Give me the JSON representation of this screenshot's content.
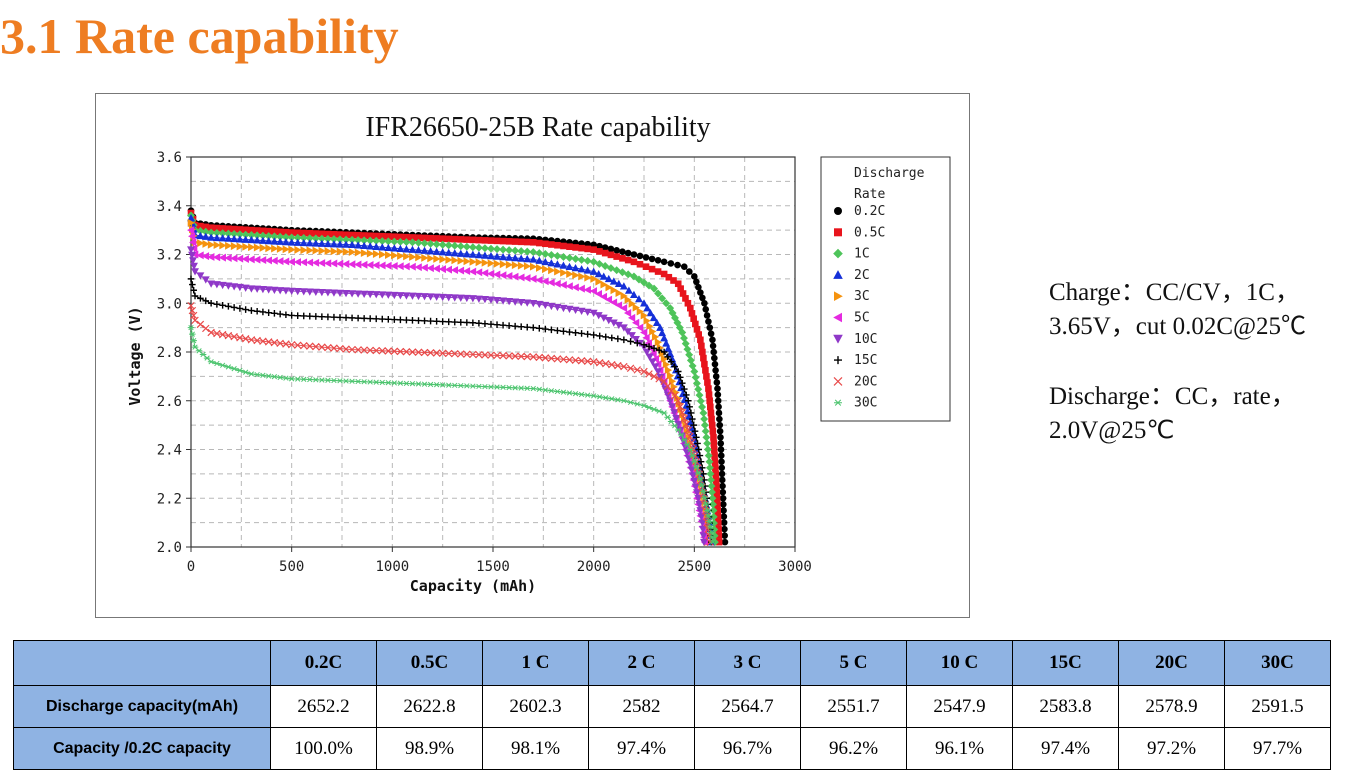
{
  "page": {
    "title": "3.1 Rate capability",
    "charge_line1": "Charge：CC/CV，1C，",
    "charge_line2": "3.65V，cut 0.02C@25℃",
    "discharge_line1": "Discharge：CC，rate，",
    "discharge_line2": "2.0V@25℃"
  },
  "chart_data": {
    "type": "scatter",
    "title": "IFR26650-25B Rate capability",
    "xlabel": "Capacity (mAh)",
    "ylabel": "Voltage (V)",
    "xlim": [
      0,
      3000
    ],
    "ylim": [
      2.0,
      3.6
    ],
    "xticks": [
      "0",
      "500",
      "1000",
      "1500",
      "2000",
      "2500",
      "3000"
    ],
    "yticks": [
      "2.0",
      "2.2",
      "2.4",
      "2.6",
      "2.8",
      "3.0",
      "3.2",
      "3.4",
      "3.6"
    ],
    "grid": true,
    "legend_title": [
      "Discharge",
      "Rate"
    ],
    "legend_position": "right",
    "series": [
      {
        "name": "0.2C",
        "color": "#000000",
        "marker": "circle",
        "points": [
          [
            0,
            3.38
          ],
          [
            20,
            3.33
          ],
          [
            100,
            3.32
          ],
          [
            300,
            3.31
          ],
          [
            500,
            3.3
          ],
          [
            800,
            3.29
          ],
          [
            1100,
            3.28
          ],
          [
            1400,
            3.27
          ],
          [
            1700,
            3.265
          ],
          [
            2000,
            3.24
          ],
          [
            2200,
            3.2
          ],
          [
            2350,
            3.17
          ],
          [
            2450,
            3.15
          ],
          [
            2500,
            3.11
          ],
          [
            2550,
            3.0
          ],
          [
            2590,
            2.85
          ],
          [
            2615,
            2.65
          ],
          [
            2630,
            2.45
          ],
          [
            2640,
            2.25
          ],
          [
            2648,
            2.1
          ],
          [
            2652,
            2.02
          ]
        ]
      },
      {
        "name": "0.5C",
        "color": "#e8141c",
        "marker": "square",
        "points": [
          [
            0,
            3.37
          ],
          [
            20,
            3.32
          ],
          [
            100,
            3.31
          ],
          [
            300,
            3.3
          ],
          [
            500,
            3.29
          ],
          [
            800,
            3.28
          ],
          [
            1100,
            3.27
          ],
          [
            1400,
            3.26
          ],
          [
            1700,
            3.25
          ],
          [
            2000,
            3.22
          ],
          [
            2200,
            3.17
          ],
          [
            2350,
            3.12
          ],
          [
            2420,
            3.08
          ],
          [
            2480,
            2.98
          ],
          [
            2530,
            2.85
          ],
          [
            2570,
            2.65
          ],
          [
            2595,
            2.45
          ],
          [
            2610,
            2.25
          ],
          [
            2619,
            2.1
          ],
          [
            2623,
            2.02
          ]
        ]
      },
      {
        "name": "1C",
        "color": "#4ec45a",
        "marker": "diamond",
        "points": [
          [
            0,
            3.36
          ],
          [
            20,
            3.3
          ],
          [
            100,
            3.29
          ],
          [
            300,
            3.28
          ],
          [
            500,
            3.27
          ],
          [
            800,
            3.26
          ],
          [
            1100,
            3.25
          ],
          [
            1400,
            3.23
          ],
          [
            1700,
            3.21
          ],
          [
            2000,
            3.17
          ],
          [
            2200,
            3.11
          ],
          [
            2300,
            3.06
          ],
          [
            2380,
            2.98
          ],
          [
            2440,
            2.88
          ],
          [
            2500,
            2.72
          ],
          [
            2545,
            2.55
          ],
          [
            2575,
            2.35
          ],
          [
            2595,
            2.15
          ],
          [
            2602,
            2.02
          ]
        ]
      },
      {
        "name": "2C",
        "color": "#1530d8",
        "marker": "triangle-up",
        "points": [
          [
            0,
            3.35
          ],
          [
            20,
            3.28
          ],
          [
            100,
            3.27
          ],
          [
            300,
            3.26
          ],
          [
            500,
            3.25
          ],
          [
            800,
            3.24
          ],
          [
            1100,
            3.22
          ],
          [
            1400,
            3.2
          ],
          [
            1700,
            3.18
          ],
          [
            2000,
            3.13
          ],
          [
            2150,
            3.07
          ],
          [
            2250,
            3.0
          ],
          [
            2330,
            2.9
          ],
          [
            2400,
            2.75
          ],
          [
            2460,
            2.58
          ],
          [
            2510,
            2.4
          ],
          [
            2550,
            2.22
          ],
          [
            2575,
            2.1
          ],
          [
            2582,
            2.02
          ]
        ]
      },
      {
        "name": "3C",
        "color": "#f5930f",
        "marker": "triangle-right",
        "points": [
          [
            0,
            3.33
          ],
          [
            20,
            3.25
          ],
          [
            100,
            3.24
          ],
          [
            300,
            3.23
          ],
          [
            500,
            3.22
          ],
          [
            800,
            3.21
          ],
          [
            1100,
            3.19
          ],
          [
            1400,
            3.17
          ],
          [
            1700,
            3.15
          ],
          [
            2000,
            3.1
          ],
          [
            2150,
            3.03
          ],
          [
            2250,
            2.95
          ],
          [
            2320,
            2.84
          ],
          [
            2390,
            2.68
          ],
          [
            2450,
            2.52
          ],
          [
            2500,
            2.35
          ],
          [
            2540,
            2.18
          ],
          [
            2560,
            2.08
          ],
          [
            2565,
            2.02
          ]
        ]
      },
      {
        "name": "5C",
        "color": "#e52ae0",
        "marker": "triangle-left",
        "points": [
          [
            0,
            3.3
          ],
          [
            20,
            3.2
          ],
          [
            100,
            3.19
          ],
          [
            300,
            3.18
          ],
          [
            500,
            3.17
          ],
          [
            800,
            3.16
          ],
          [
            1100,
            3.15
          ],
          [
            1400,
            3.13
          ],
          [
            1700,
            3.1
          ],
          [
            2000,
            3.05
          ],
          [
            2150,
            2.98
          ],
          [
            2250,
            2.88
          ],
          [
            2320,
            2.75
          ],
          [
            2380,
            2.6
          ],
          [
            2440,
            2.45
          ],
          [
            2490,
            2.3
          ],
          [
            2525,
            2.15
          ],
          [
            2545,
            2.06
          ],
          [
            2552,
            2.02
          ]
        ]
      },
      {
        "name": "10C",
        "color": "#8f38c8",
        "marker": "triangle-down",
        "points": [
          [
            0,
            3.22
          ],
          [
            20,
            3.13
          ],
          [
            100,
            3.08
          ],
          [
            300,
            3.06
          ],
          [
            500,
            3.05
          ],
          [
            800,
            3.04
          ],
          [
            1100,
            3.03
          ],
          [
            1400,
            3.02
          ],
          [
            1700,
            3.0
          ],
          [
            2000,
            2.96
          ],
          [
            2150,
            2.9
          ],
          [
            2250,
            2.82
          ],
          [
            2320,
            2.72
          ],
          [
            2380,
            2.6
          ],
          [
            2430,
            2.48
          ],
          [
            2480,
            2.34
          ],
          [
            2520,
            2.2
          ],
          [
            2540,
            2.1
          ],
          [
            2548,
            2.02
          ]
        ]
      },
      {
        "name": "15C",
        "color": "#000000",
        "marker": "plus",
        "points": [
          [
            0,
            3.1
          ],
          [
            20,
            3.03
          ],
          [
            100,
            3.0
          ],
          [
            300,
            2.97
          ],
          [
            500,
            2.95
          ],
          [
            800,
            2.94
          ],
          [
            1100,
            2.93
          ],
          [
            1400,
            2.92
          ],
          [
            1700,
            2.9
          ],
          [
            2000,
            2.87
          ],
          [
            2150,
            2.85
          ],
          [
            2250,
            2.83
          ],
          [
            2350,
            2.8
          ],
          [
            2420,
            2.72
          ],
          [
            2470,
            2.6
          ],
          [
            2510,
            2.45
          ],
          [
            2545,
            2.3
          ],
          [
            2570,
            2.15
          ],
          [
            2584,
            2.02
          ]
        ]
      },
      {
        "name": "20C",
        "color": "#e84a4a",
        "marker": "x",
        "points": [
          [
            0,
            2.99
          ],
          [
            20,
            2.93
          ],
          [
            100,
            2.88
          ],
          [
            300,
            2.85
          ],
          [
            500,
            2.83
          ],
          [
            800,
            2.81
          ],
          [
            1100,
            2.8
          ],
          [
            1400,
            2.79
          ],
          [
            1700,
            2.78
          ],
          [
            2000,
            2.76
          ],
          [
            2150,
            2.74
          ],
          [
            2250,
            2.72
          ],
          [
            2350,
            2.68
          ],
          [
            2420,
            2.6
          ],
          [
            2470,
            2.48
          ],
          [
            2510,
            2.35
          ],
          [
            2545,
            2.22
          ],
          [
            2565,
            2.1
          ],
          [
            2579,
            2.02
          ]
        ]
      },
      {
        "name": "30C",
        "color": "#4cc46e",
        "marker": "asterisk",
        "points": [
          [
            0,
            2.9
          ],
          [
            20,
            2.82
          ],
          [
            100,
            2.76
          ],
          [
            300,
            2.71
          ],
          [
            500,
            2.69
          ],
          [
            800,
            2.68
          ],
          [
            1100,
            2.67
          ],
          [
            1400,
            2.66
          ],
          [
            1700,
            2.65
          ],
          [
            2000,
            2.62
          ],
          [
            2150,
            2.6
          ],
          [
            2250,
            2.58
          ],
          [
            2350,
            2.55
          ],
          [
            2420,
            2.48
          ],
          [
            2480,
            2.4
          ],
          [
            2530,
            2.28
          ],
          [
            2565,
            2.15
          ],
          [
            2585,
            2.06
          ],
          [
            2592,
            2.02
          ]
        ]
      }
    ]
  },
  "table": {
    "headers": [
      "",
      "0.2C",
      "0.5C",
      "1 C",
      "2 C",
      "3 C",
      "5 C",
      "10 C",
      "15C",
      "20C",
      "30C"
    ],
    "rows": [
      {
        "label": "Discharge capacity(mAh)",
        "values": [
          "2652.2",
          "2622.8",
          "2602.3",
          "2582",
          "2564.7",
          "2551.7",
          "2547.9",
          "2583.8",
          "2578.9",
          "2591.5"
        ]
      },
      {
        "label": "Capacity /0.2C capacity",
        "values": [
          "100.0%",
          "98.9%",
          "98.1%",
          "97.4%",
          "96.7%",
          "96.2%",
          "96.1%",
          "97.4%",
          "97.2%",
          "97.7%"
        ]
      }
    ]
  }
}
